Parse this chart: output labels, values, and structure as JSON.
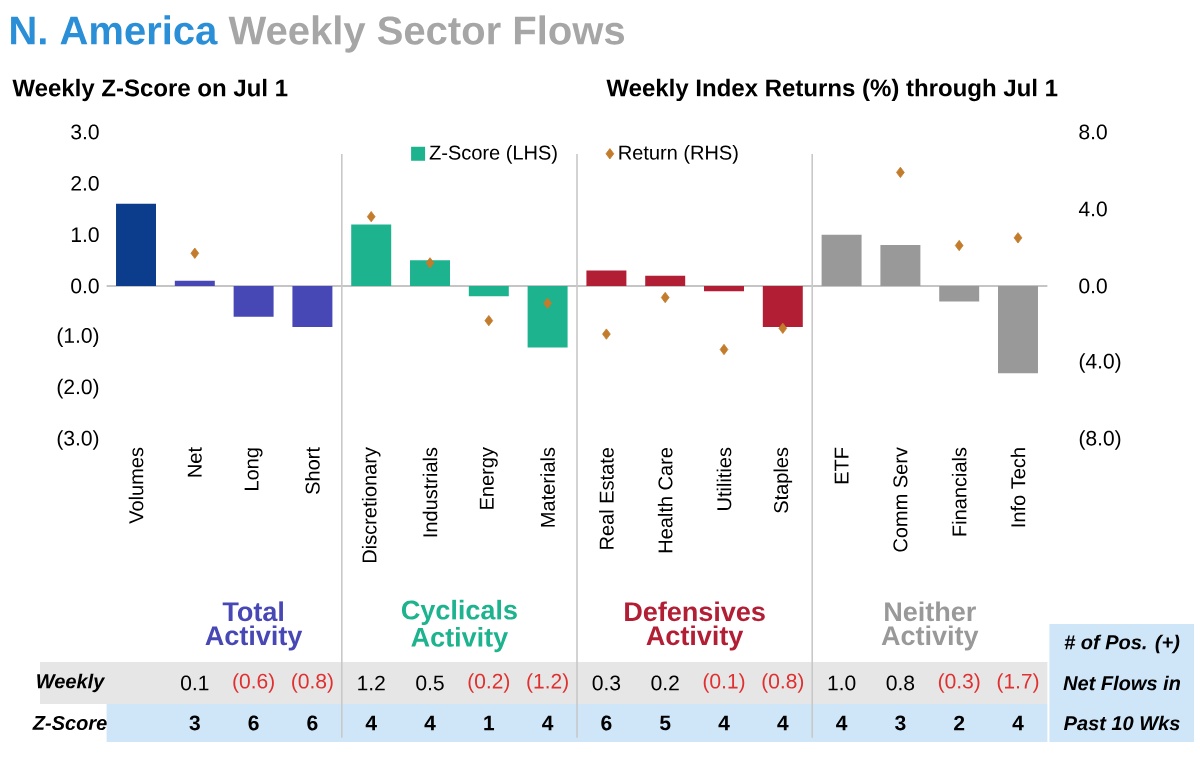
{
  "chart_data": {
    "type": "bar",
    "title": "N. America",
    "subtitle": "Weekly Sector Flows",
    "ylabel": "Weekly Z-Score on Jul 1",
    "y2label": "Weekly Index Returns (%) through Jul 1",
    "categories": [
      "Volumes",
      "Net",
      "Long",
      "Short",
      "Discretionary",
      "Industrials",
      "Energy",
      "Materials",
      "Real Estate",
      "Health Care",
      "Utilities",
      "Staples",
      "ETF",
      "Comm Serv",
      "Financials",
      "Info Tech"
    ],
    "series": [
      {
        "name": "Z-Score (LHS)",
        "color": "#1db38e",
        "colors": [
          "#0b3d8c",
          "#4747b5",
          "#4747b5",
          "#4747b5",
          "#1db38e",
          "#1db38e",
          "#1db38e",
          "#1db38e",
          "#b21f35",
          "#b21f35",
          "#b21f35",
          "#b21f35",
          "#999999",
          "#999999",
          "#999999",
          "#999999"
        ],
        "values": [
          1.6,
          0.1,
          -0.6,
          -0.8,
          1.2,
          0.5,
          -0.2,
          -1.2,
          0.3,
          0.2,
          -0.1,
          -0.8,
          1.0,
          0.8,
          -0.3,
          -1.7
        ],
        "value_labels": [
          null,
          "0.1",
          "(0.6)",
          "(0.8)",
          "1.2",
          "0.5",
          "(0.2)",
          "(1.2)",
          "0.3",
          "0.2",
          "(0.1)",
          "(0.8)",
          "1.0",
          "0.8",
          "(0.3)",
          "(1.7)"
        ]
      },
      {
        "name": "Return (RHS)",
        "type": "scatter",
        "axis": "y2",
        "color": "#c27c2c",
        "marker": "diamond",
        "values": [
          null,
          1.7,
          null,
          null,
          3.6,
          1.2,
          -1.8,
          -0.9,
          -2.5,
          -0.6,
          -3.3,
          -2.2,
          null,
          5.9,
          2.1,
          2.5
        ]
      }
    ],
    "ylim": [
      -3,
      3
    ],
    "yticks": [
      {
        "value": -3,
        "label": "(3.0)"
      },
      {
        "value": -2,
        "label": "(2.0)"
      },
      {
        "value": -1,
        "label": "(1.0)"
      },
      {
        "value": 0,
        "label": "0.0"
      },
      {
        "value": 1,
        "label": "1.0"
      },
      {
        "value": 2,
        "label": "2.0"
      },
      {
        "value": 3,
        "label": "3.0"
      }
    ],
    "y2lim": [
      -8,
      8
    ],
    "y2ticks": [
      {
        "value": -8,
        "label": "(8.0)"
      },
      {
        "value": -4,
        "label": "(4.0)"
      },
      {
        "value": 0,
        "label": "0.0"
      },
      {
        "value": 4,
        "label": "4.0"
      },
      {
        "value": 8,
        "label": "8.0"
      }
    ],
    "legend": "top",
    "annotations": [
      "Total Activity",
      "Cyclicals Activity",
      "Defensives Activity",
      "Neither Activity",
      "Weekly",
      "Z-Score",
      "# of Pos. (+)",
      "Net Flows in",
      "Past 10 Wks",
      "3",
      "6",
      "6",
      "4",
      "4",
      "1",
      "4",
      "6",
      "5",
      "4",
      "4",
      "4",
      "3",
      "2",
      "4"
    ]
  }
}
